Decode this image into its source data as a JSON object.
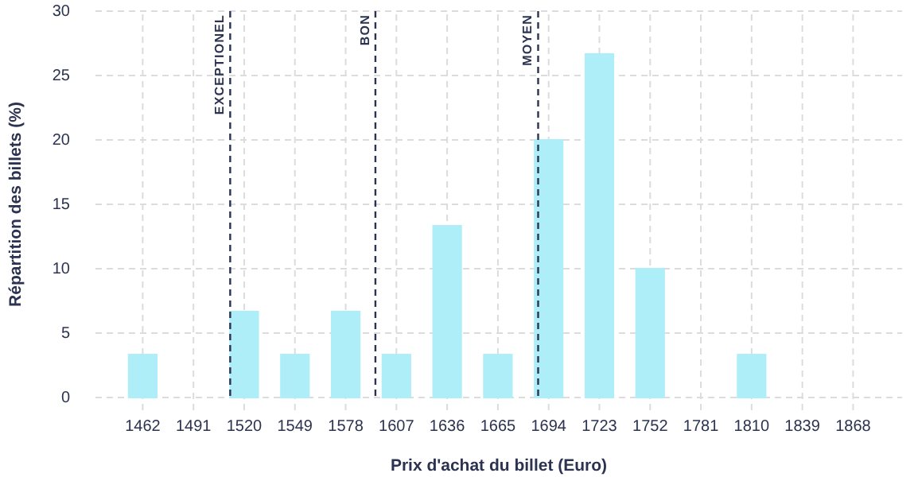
{
  "chart_data": {
    "type": "bar",
    "xlabel": "Prix d'achat du billet (Euro)",
    "ylabel": "Répartition des billets (%)",
    "x": [
      1462,
      1491,
      1520,
      1549,
      1578,
      1607,
      1636,
      1665,
      1694,
      1723,
      1752,
      1781,
      1810,
      1839,
      1868
    ],
    "xlim": [
      1435,
      1896
    ],
    "xticks": [
      1462,
      1491,
      1520,
      1549,
      1578,
      1607,
      1636,
      1665,
      1694,
      1723,
      1752,
      1781,
      1810,
      1839,
      1868
    ],
    "values": [
      3.33,
      0,
      6.67,
      3.33,
      6.67,
      3.33,
      13.33,
      3.33,
      20,
      26.67,
      10,
      0,
      3.33,
      0,
      0
    ],
    "color": "#aeeef8",
    "ylim": [
      0,
      30
    ],
    "yticks": [
      0,
      5,
      10,
      15,
      20,
      25,
      30
    ],
    "grid": true,
    "ref_lines": [
      {
        "axis": "x",
        "value": 1512,
        "label": "EXCEPTIONEL",
        "color": "#2b3350",
        "line_style": "dashed"
      },
      {
        "axis": "x",
        "value": 1595,
        "label": "BON",
        "color": "#2b3350",
        "line_style": "dashed"
      },
      {
        "axis": "x",
        "value": 1688,
        "label": "MOYEN",
        "color": "#2b3350",
        "line_style": "dashed"
      }
    ]
  }
}
